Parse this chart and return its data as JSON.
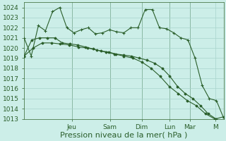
{
  "background_color": "#cceee8",
  "plot_bg_color": "#cceee8",
  "grid_color": "#a8d4cc",
  "line_color": "#2a5e2a",
  "marker_color": "#2a5e2a",
  "ylim": [
    1013,
    1024.5
  ],
  "yticks": [
    1013,
    1014,
    1015,
    1016,
    1017,
    1018,
    1019,
    1020,
    1021,
    1022,
    1023,
    1024
  ],
  "xlabel": "Pression niveau de la mer( hPa )",
  "xlabel_fontsize": 8,
  "tick_fontsize": 6.5,
  "day_labels": [
    "Jeu",
    "Sam",
    "Dim",
    "Lun",
    "Mar",
    "M"
  ],
  "series1_y": [
    1021.0,
    1019.2,
    1022.2,
    1021.7,
    1023.6,
    1024.0,
    1022.0,
    1021.5,
    1021.8,
    1022.0,
    1021.4,
    1021.5,
    1021.8,
    1021.6,
    1021.5,
    1022.0,
    1022.0,
    1023.8,
    1023.8,
    1022.0,
    1021.9,
    1021.5,
    1021.0,
    1020.8,
    1019.0,
    1016.3,
    1015.0,
    1014.8,
    1013.1
  ],
  "series2_y": [
    1019.2,
    1020.8,
    1021.0,
    1021.0,
    1021.0,
    1020.5,
    1020.4,
    1020.3,
    1020.1,
    1019.9,
    1019.7,
    1019.6,
    1019.4,
    1019.3,
    1019.2,
    1019.0,
    1018.8,
    1018.5,
    1018.0,
    1017.2,
    1016.2,
    1015.5,
    1015.0,
    1014.3,
    1013.5,
    1013.0,
    1013.2
  ],
  "series3_y": [
    1019.2,
    1020.0,
    1020.5,
    1020.5,
    1020.4,
    1020.3,
    1020.1,
    1020.0,
    1019.8,
    1019.6,
    1019.4,
    1019.2,
    1019.0,
    1018.6,
    1018.0,
    1017.2,
    1016.2,
    1015.5,
    1014.8,
    1014.3,
    1013.5,
    1013.0,
    1012.7
  ],
  "n1": 29,
  "n2": 27,
  "n3": 23,
  "day_x_fracs": [
    0.24,
    0.43,
    0.59,
    0.73,
    0.83,
    0.96
  ],
  "vline_color": "#4a7a4a",
  "vline_x": [
    0.24,
    0.43,
    0.59,
    0.73,
    0.83
  ]
}
